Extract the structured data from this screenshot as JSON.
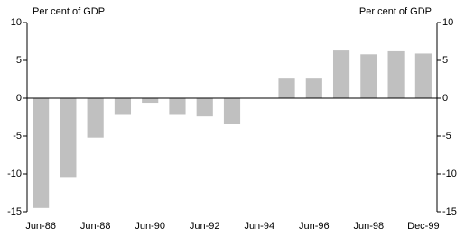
{
  "chart_data": {
    "type": "bar",
    "y_label": "Per cent of GDP",
    "y2_label": "Per cent of GDP",
    "categories": [
      "Jun-86",
      null,
      "Jun-88",
      null,
      "Jun-90",
      null,
      "Jun-92",
      null,
      "Jun-94",
      null,
      "Jun-96",
      null,
      "Jun-98",
      null,
      "Dec-99"
    ],
    "values": [
      -14.5,
      -10.4,
      -5.2,
      -2.2,
      -0.6,
      -2.2,
      -2.4,
      -3.4,
      null,
      2.6,
      2.6,
      6.3,
      5.8,
      6.2,
      5.9
    ],
    "color": "#c0c0c0",
    "ylim": [
      -15,
      10
    ],
    "yticks": [
      -15,
      -10,
      -5,
      0,
      5,
      10
    ],
    "y2lim": [
      -15,
      10
    ],
    "y2ticks": [
      -15,
      -10,
      -5,
      0,
      5,
      10
    ]
  }
}
